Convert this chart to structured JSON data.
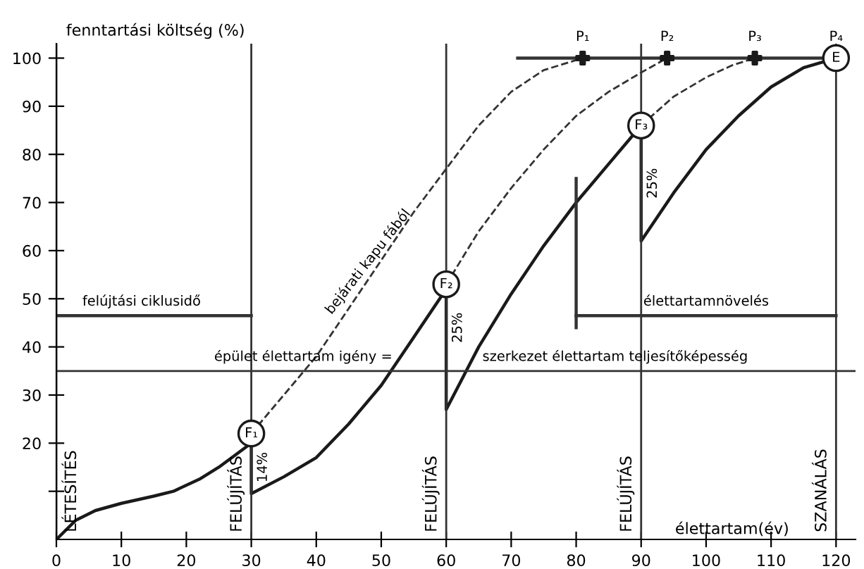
{
  "chart_data": {
    "type": "line",
    "xlabel": "élettartam(év)",
    "ylabel": "fenntartási költség (%)",
    "xlim": [
      0,
      123
    ],
    "ylim": [
      0,
      103
    ],
    "xticks": [
      0,
      10,
      20,
      30,
      40,
      50,
      60,
      70,
      80,
      90,
      100,
      110,
      120
    ],
    "yticks": [
      {
        "value": 10,
        "label": null
      },
      20,
      30,
      40,
      50,
      60,
      70,
      80,
      90,
      100
    ],
    "grid": false,
    "legend": false,
    "series": [
      {
        "type": "line",
        "color": "#1a1a1a",
        "line_style": "solid",
        "x": [
          0,
          3,
          6,
          10,
          15,
          18,
          22,
          25,
          28,
          30,
          30,
          35,
          40,
          45,
          50,
          55,
          60,
          60,
          65,
          70,
          75,
          80,
          85,
          90,
          90,
          95,
          100,
          105,
          110,
          115,
          120
        ],
        "values": [
          0,
          4,
          6,
          7.5,
          9,
          10,
          12.5,
          15,
          18,
          20,
          9.5,
          13,
          17,
          24,
          32,
          42,
          52,
          27,
          40,
          51,
          61,
          70,
          78,
          86,
          62,
          72,
          81,
          88,
          94,
          98,
          100
        ]
      },
      {
        "type": "line",
        "color": "#333333",
        "line_style": "dashed",
        "x": [
          30,
          35,
          40,
          45,
          50,
          55,
          60,
          65,
          70,
          75,
          81
        ],
        "values": [
          22,
          30,
          38,
          48,
          58,
          68,
          77,
          86,
          93,
          97.5,
          100
        ]
      },
      {
        "type": "line",
        "color": "#333333",
        "line_style": "dashed",
        "x": [
          60,
          65,
          70,
          75,
          80,
          85,
          90,
          94
        ],
        "values": [
          53,
          64,
          73,
          81,
          88,
          93,
          97,
          100
        ]
      },
      {
        "type": "line",
        "color": "#333333",
        "line_style": "dashed",
        "x": [
          90,
          95,
          100,
          104,
          107.5
        ],
        "values": [
          86,
          92,
          96,
          98.5,
          100
        ]
      },
      {
        "type": "line",
        "color": "#333333",
        "line_style": "solid",
        "x": [
          71,
          120
        ],
        "values": [
          100,
          100
        ]
      },
      {
        "type": "line",
        "color": "#333333",
        "line_style": "solid",
        "x": [
          0,
          30
        ],
        "values": [
          46.5,
          46.5
        ]
      },
      {
        "type": "line",
        "color": "#333333",
        "line_style": "solid",
        "x": [
          80,
          120
        ],
        "values": [
          46.5,
          46.5
        ]
      },
      {
        "type": "line",
        "color": "#333333",
        "line_style": "solid",
        "x": [
          80,
          80
        ],
        "values": [
          44,
          75
        ]
      },
      {
        "type": "scatter",
        "color": "#1a1a1a",
        "marker": "circle",
        "x": [
          30,
          60,
          90,
          120
        ],
        "values": [
          22,
          53,
          86,
          100
        ]
      },
      {
        "type": "scatter",
        "color": "#1a1a1a",
        "marker": "cross",
        "x": [
          81,
          94,
          107.5
        ],
        "values": [
          100,
          100,
          100
        ]
      }
    ],
    "ref_lines": [
      {
        "axis": "x",
        "value": 0,
        "label": "LÉTESÍTÉS",
        "color": "#333333"
      },
      {
        "axis": "x",
        "value": 30,
        "label": "FELÚJÍTÁS",
        "color": "#333333"
      },
      {
        "axis": "x",
        "value": 60,
        "label": "FELÚJÍTÁS",
        "color": "#333333"
      },
      {
        "axis": "x",
        "value": 90,
        "label": "FELÚJÍTÁS",
        "color": "#333333"
      },
      {
        "axis": "x",
        "value": 120,
        "label": "SZANÁLÁS",
        "color": "#333333"
      },
      {
        "axis": "y",
        "value": 35,
        "label": null,
        "color": "#333333"
      }
    ],
    "annotations": [
      {
        "text": "14%",
        "x": 30,
        "y": 15
      },
      {
        "text": "25%",
        "x": 60,
        "y": 44
      },
      {
        "text": "25%",
        "x": 90,
        "y": 74
      },
      "bejárati kapu fából",
      {
        "text": "felújtási ciklusidő",
        "x": 4,
        "y": 46.5
      },
      {
        "text": "épület élettartam igény =",
        "x": 38,
        "y": 35
      },
      {
        "text": "szerkezet élettartam teljesítőképesség",
        "x": 86,
        "y": 35
      },
      {
        "text": "élettartamnövelés",
        "x": 100,
        "y": 46.5
      },
      {
        "text": "F₁",
        "x": 30,
        "y": 22
      },
      {
        "text": "F₂",
        "x": 60,
        "y": 53
      },
      {
        "text": "F₃",
        "x": 90,
        "y": 86
      },
      {
        "text": "E",
        "x": 120,
        "y": 100
      },
      {
        "text": "P₁",
        "x": 81,
        "y": 100
      },
      {
        "text": "P₂",
        "x": 94,
        "y": 100
      },
      {
        "text": "P₃",
        "x": 107.5,
        "y": 100
      },
      {
        "text": "P₄",
        "x": 120,
        "y": 100
      }
    ]
  }
}
